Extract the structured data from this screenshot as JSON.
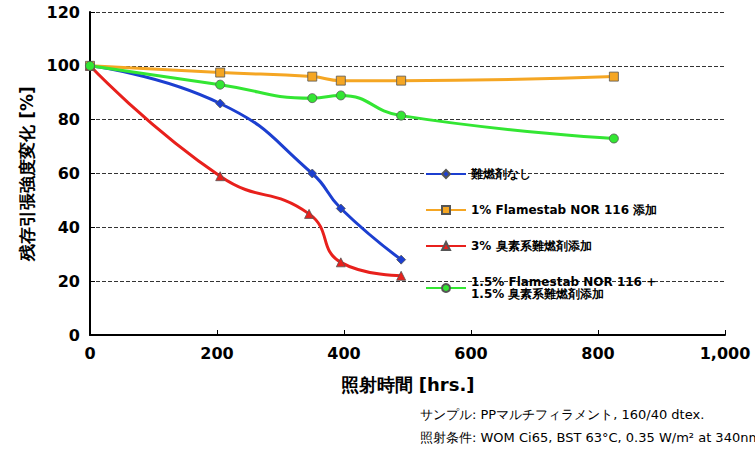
{
  "chart_data": {
    "type": "line",
    "x_label": "照射時間 [hrs.]",
    "y_label": "残存引張強度変化 [%]",
    "notes": [
      "サンプル: PPマルチフィラメント, 160/40 dtex.",
      "照射条件: WOM Ci65, BST 63°C, 0.35 W/m² at 340nm"
    ],
    "xlim": [
      0,
      1000
    ],
    "xticks": [
      0,
      200,
      400,
      600,
      800,
      1000
    ],
    "ylim": [
      0,
      120
    ],
    "yticks": [
      0,
      20,
      40,
      60,
      80,
      100,
      120
    ],
    "grid": true,
    "legend": "right",
    "series": [
      {
        "name": "難燃剤なし",
        "color": "#1c3fd0",
        "marker": "diamond",
        "x": [
          0,
          205,
          350,
          395,
          490
        ],
        "values": [
          100,
          86,
          60,
          47,
          28
        ]
      },
      {
        "name": "1% Flamestab NOR 116 添加",
        "color": "#f5a623",
        "marker": "square",
        "x": [
          0,
          205,
          350,
          395,
          490,
          825
        ],
        "values": [
          100,
          97.5,
          96,
          94.5,
          94.5,
          96
        ]
      },
      {
        "name": "3% 臭素系難燃剤添加",
        "color": "#e8201c",
        "marker": "triangle",
        "x": [
          0,
          205,
          345,
          395,
          490
        ],
        "values": [
          100,
          59,
          45,
          27,
          22
        ]
      },
      {
        "name": "1.5% Flamestab NOR 116 +\n1.5% 臭素系難燃剤添加",
        "color": "#33e633",
        "marker": "circle",
        "x": [
          0,
          205,
          350,
          395,
          490,
          825
        ],
        "values": [
          100,
          93,
          88,
          89,
          81.5,
          73
        ]
      }
    ]
  }
}
